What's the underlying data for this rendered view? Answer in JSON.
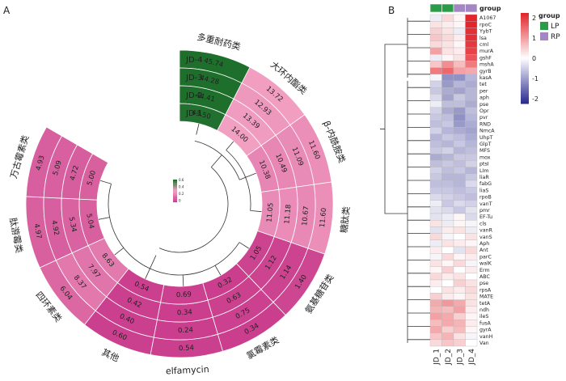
{
  "panels": {
    "a": "A",
    "b": "B"
  },
  "colors": {
    "high": "#1e6f2c",
    "mid": "#f2a0c2",
    "low": "#c93c8c",
    "hm_high": "#e3262d",
    "hm_mid": "#ffffff",
    "hm_low": "#2c2c8f",
    "lp": "#2a9c47",
    "rp": "#a386c3"
  },
  "chart_data": [
    {
      "type": "heatmap",
      "layout": "circular",
      "title": "",
      "rows": [
        "JD-4",
        "JD-3",
        "JD-2",
        "JD-1"
      ],
      "categories": [
        "多重耐药类",
        "大环内酯类",
        "β-内酰胺类",
        "糖肽类",
        "氨基糖苷类",
        "氯霉素类",
        "elfamycin",
        "其他",
        "四环素类",
        "肽游霉类",
        "万古霉素类"
      ],
      "values": {
        "多重耐药类": [
          45.74,
          44.28,
          44.41,
          43.5
        ],
        "大环内酯类": [
          13.72,
          12.93,
          13.39,
          14.0
        ],
        "β-内酰胺类": [
          11.6,
          11.09,
          10.49,
          10.38
        ],
        "糖肽类": [
          11.6,
          10.67,
          11.18,
          11.05
        ],
        "氨基糖苷类": [
          1.4,
          1.14,
          1.12,
          1.05
        ],
        "氯霉素类": [
          0.34,
          0.75,
          0.63,
          0.32
        ],
        "elfamycin": [
          0.54,
          0.24,
          0.34,
          0.69
        ],
        "其他": [
          0.6,
          0.4,
          0.42,
          0.54
        ],
        "四环素类": [
          6.04,
          8.37,
          7.97,
          8.63
        ],
        "肽游霉类": [
          4.97,
          4.92,
          5.34,
          5.04
        ],
        "万古霉素类": [
          4.93,
          5.09,
          4.72,
          5.0
        ]
      },
      "legend": {
        "ticks": [
          "0.6",
          "0.4",
          "0.2",
          "0"
        ]
      }
    },
    {
      "type": "heatmap",
      "columns": [
        "JD_1",
        "JD_2",
        "JD_3",
        "JD_4"
      ],
      "column_groups": [
        "LP",
        "LP",
        "RP",
        "RP"
      ],
      "group_title": "group",
      "legend_groups": [
        "LP",
        "RP"
      ],
      "colorbar_ticks": [
        "2",
        "1",
        "0",
        "-1",
        "-2"
      ],
      "rows": [
        "A1067",
        "rpoC",
        "YybT",
        "lsa",
        "cml",
        "murA",
        "gshF",
        "mshA",
        "gyrB",
        "kasA",
        "tet",
        "per",
        "aph",
        "pse",
        "Opr",
        "pvr",
        "RND",
        "NmcA",
        "UhpT",
        "GlpT",
        "MFS",
        "mox",
        "ptsI",
        "LIm",
        "liaR",
        "fabG",
        "liaS",
        "rpoB",
        "vanT",
        "pmr",
        "EF-Tu",
        "cls",
        "vanR",
        "vanS",
        "Aph",
        "Ant",
        "parC",
        "walK",
        "Erm",
        "ABC",
        "pse",
        "rpsA",
        "MATE",
        "tetA",
        "ndh",
        "ileS",
        "fusA",
        "gyrA",
        "vanH",
        "Van"
      ],
      "values": [
        [
          -0.2,
          0.4,
          0.1,
          2.3
        ],
        [
          0.3,
          0.2,
          0.1,
          2.3
        ],
        [
          0.5,
          0.3,
          -0.2,
          2.2
        ],
        [
          0.6,
          0.4,
          0.2,
          2.2
        ],
        [
          0.4,
          0.3,
          0.1,
          2.1
        ],
        [
          1.0,
          0.3,
          0.2,
          2.0
        ],
        [
          -0.2,
          0.1,
          0.3,
          1.8
        ],
        [
          0.6,
          1.2,
          0.7,
          1.4
        ],
        [
          1.4,
          1.6,
          1.0,
          0.9
        ],
        [
          -0.1,
          -1.2,
          -1.2,
          -0.8
        ],
        [
          -0.5,
          -1.1,
          -0.8,
          -0.9
        ],
        [
          -0.6,
          -0.9,
          -1.0,
          -0.8
        ],
        [
          -0.4,
          -1.0,
          -0.6,
          -0.8
        ],
        [
          -0.2,
          -0.7,
          -0.7,
          -0.9
        ],
        [
          -0.5,
          -0.9,
          -1.1,
          -0.7
        ],
        [
          -0.6,
          -0.7,
          -1.2,
          -0.8
        ],
        [
          -0.7,
          -0.6,
          -1.1,
          -0.9
        ],
        [
          -0.5,
          -0.8,
          -0.9,
          -1.0
        ],
        [
          -0.8,
          -0.6,
          -0.7,
          -0.9
        ],
        [
          -0.7,
          -0.8,
          -0.6,
          -0.8
        ],
        [
          -0.6,
          -0.5,
          -0.8,
          -0.7
        ],
        [
          -0.9,
          -0.8,
          -0.6,
          -0.6
        ],
        [
          -0.7,
          -0.6,
          -0.7,
          -0.5
        ],
        [
          -0.5,
          -0.7,
          -0.6,
          -0.8
        ],
        [
          -0.6,
          -0.8,
          -0.8,
          -0.6
        ],
        [
          -0.7,
          -0.7,
          -0.8,
          -0.4
        ],
        [
          -0.6,
          -0.6,
          -0.7,
          -0.6
        ],
        [
          -0.4,
          -0.5,
          -0.6,
          -0.7
        ],
        [
          -0.2,
          -0.6,
          -0.4,
          -0.5
        ],
        [
          -0.3,
          -0.4,
          -0.6,
          -0.3
        ],
        [
          -0.3,
          -0.2,
          0.1,
          -0.4
        ],
        [
          0.3,
          -0.2,
          0.1,
          -0.1
        ],
        [
          -0.3,
          0.2,
          0.3,
          -0.2
        ],
        [
          0.4,
          -0.1,
          0.0,
          0.3
        ],
        [
          -0.2,
          0.3,
          0.2,
          0.1
        ],
        [
          0.2,
          0.0,
          -0.3,
          0.4
        ],
        [
          -0.1,
          0.4,
          0.1,
          0.2
        ],
        [
          0.3,
          0.1,
          0.4,
          -0.1
        ],
        [
          0.1,
          0.5,
          0.0,
          0.2
        ],
        [
          0.4,
          0.2,
          0.3,
          0.0
        ],
        [
          0.2,
          0.0,
          0.5,
          0.3
        ],
        [
          0.0,
          0.3,
          0.2,
          0.4
        ],
        [
          0.5,
          0.2,
          0.1,
          0.3
        ],
        [
          0.9,
          1.1,
          0.9,
          0.3
        ],
        [
          0.8,
          0.7,
          1.0,
          0.2
        ],
        [
          1.0,
          0.9,
          0.5,
          0.1
        ],
        [
          0.7,
          0.9,
          0.8,
          0.2
        ],
        [
          0.9,
          0.5,
          0.7,
          0.1
        ],
        [
          0.6,
          0.8,
          0.3,
          -0.1
        ],
        [
          0.4,
          0.6,
          0.5,
          0.0
        ]
      ]
    }
  ]
}
